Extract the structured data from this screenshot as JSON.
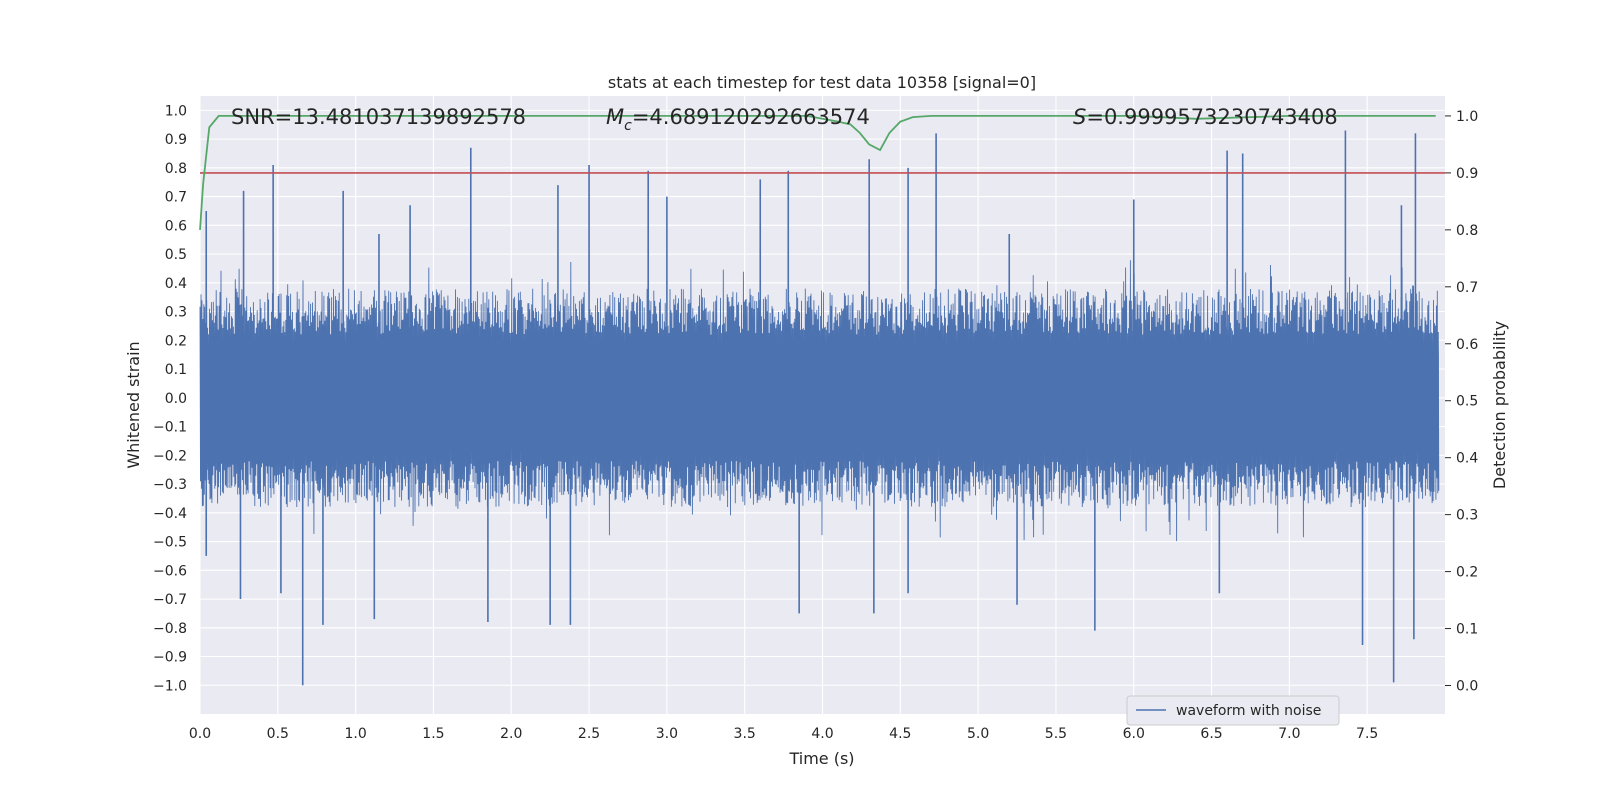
{
  "chart_data": {
    "type": "line",
    "title": "stats at each timestep for test data 10358 [signal=0]",
    "xlabel": "Time (s)",
    "ylabel": "Whitened strain",
    "ylabel_right": "Detection probability",
    "xlim": [
      0.0,
      8.0
    ],
    "ylim": [
      -1.1,
      1.05
    ],
    "ylim_right": [
      -0.05,
      1.035
    ],
    "x_ticks": [
      "0.0",
      "0.5",
      "1.0",
      "1.5",
      "2.0",
      "2.5",
      "3.0",
      "3.5",
      "4.0",
      "4.5",
      "5.0",
      "5.5",
      "6.0",
      "6.5",
      "7.0",
      "7.5"
    ],
    "y_ticks": [
      "−1.0",
      "−0.9",
      "−0.8",
      "−0.7",
      "−0.6",
      "−0.5",
      "−0.4",
      "−0.3",
      "−0.2",
      "−0.1",
      "0.0",
      "0.1",
      "0.2",
      "0.3",
      "0.4",
      "0.5",
      "0.6",
      "0.7",
      "0.8",
      "0.9",
      "1.0"
    ],
    "y_ticks_right": [
      "0.0",
      "0.1",
      "0.2",
      "0.3",
      "0.4",
      "0.5",
      "0.6",
      "0.7",
      "0.8",
      "0.9",
      "1.0"
    ],
    "annotations": {
      "snr": "SNR=13.481037139892578",
      "mc_value": "=4.689120292663574",
      "s_value": "=0.9999573230743408"
    },
    "legend": {
      "label": "waveform with noise",
      "placement": "lower-right"
    },
    "threshold": 0.9,
    "series": [
      {
        "name": "waveform with noise",
        "axis": "left",
        "color": "#4c72b0",
        "note": "dense noise, typical envelope about ±0.45, spikes listed below",
        "spikes_pos": [
          [
            0.04,
            0.65
          ],
          [
            0.28,
            0.72
          ],
          [
            0.47,
            0.81
          ],
          [
            0.92,
            0.72
          ],
          [
            1.15,
            0.57
          ],
          [
            1.35,
            0.67
          ],
          [
            1.74,
            0.87
          ],
          [
            2.3,
            0.74
          ],
          [
            2.5,
            0.81
          ],
          [
            2.88,
            0.79
          ],
          [
            3.0,
            0.7
          ],
          [
            3.6,
            0.76
          ],
          [
            3.78,
            0.79
          ],
          [
            4.3,
            0.83
          ],
          [
            4.55,
            0.8
          ],
          [
            4.73,
            0.92
          ],
          [
            5.2,
            0.57
          ],
          [
            6.0,
            0.69
          ],
          [
            6.6,
            0.86
          ],
          [
            6.7,
            0.85
          ],
          [
            7.36,
            0.93
          ],
          [
            7.72,
            0.67
          ],
          [
            7.81,
            0.92
          ]
        ],
        "spikes_neg": [
          [
            0.04,
            -0.55
          ],
          [
            0.26,
            -0.7
          ],
          [
            0.52,
            -0.68
          ],
          [
            0.66,
            -1.0
          ],
          [
            0.79,
            -0.79
          ],
          [
            1.12,
            -0.77
          ],
          [
            1.85,
            -0.78
          ],
          [
            2.25,
            -0.79
          ],
          [
            2.38,
            -0.79
          ],
          [
            3.85,
            -0.75
          ],
          [
            4.33,
            -0.75
          ],
          [
            4.55,
            -0.68
          ],
          [
            5.25,
            -0.72
          ],
          [
            5.75,
            -0.81
          ],
          [
            6.55,
            -0.68
          ],
          [
            7.47,
            -0.86
          ],
          [
            7.67,
            -0.99
          ],
          [
            7.8,
            -0.84
          ]
        ]
      },
      {
        "name": "detection probability",
        "axis": "right",
        "color": "#55a868",
        "x": [
          0.0,
          0.02,
          0.06,
          0.12,
          0.5,
          1.0,
          2.0,
          3.0,
          3.5,
          3.9,
          4.0,
          4.1,
          4.18,
          4.24,
          4.3,
          4.37,
          4.43,
          4.5,
          4.58,
          4.7,
          5.0,
          6.0,
          6.4,
          7.0,
          7.5,
          7.94
        ],
        "values": [
          0.8,
          0.88,
          0.98,
          1.0,
          1.0,
          1.0,
          1.0,
          1.0,
          1.0,
          1.0,
          0.995,
          0.99,
          0.985,
          0.97,
          0.95,
          0.94,
          0.97,
          0.99,
          0.998,
          1.0,
          1.0,
          1.0,
          0.995,
          1.0,
          1.0,
          1.0
        ]
      },
      {
        "name": "threshold",
        "axis": "right",
        "color": "#c44e52",
        "x": [
          0.0,
          8.0
        ],
        "values": [
          0.9,
          0.9
        ]
      }
    ]
  }
}
